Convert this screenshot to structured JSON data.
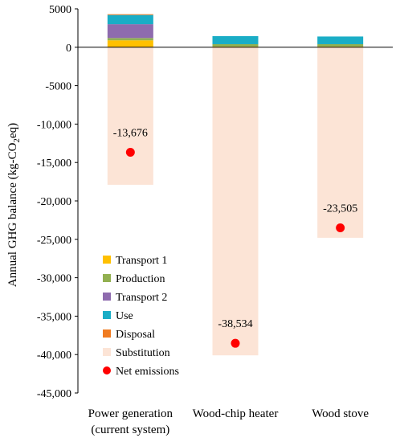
{
  "chart_data": {
    "type": "bar",
    "stacked": true,
    "categories": [
      [
        "Power generation",
        "(current system)"
      ],
      [
        "Wood-chip heater"
      ],
      [
        "Wood stove"
      ]
    ],
    "ylabel": "Annual GHG balance (kg-CO₂eq)",
    "ylim": [
      -45000,
      5000
    ],
    "yticks": [
      5000,
      0,
      -5000,
      -10000,
      -15000,
      -20000,
      -25000,
      -30000,
      -35000,
      -40000,
      -45000
    ],
    "ytick_labels": [
      "5000",
      "0",
      "-5000",
      "-10,000",
      "-15,000",
      "-20,000",
      "-25,000",
      "-30,000",
      "-35,000",
      "-40,000",
      "-45,000"
    ],
    "grid": false,
    "legend_position": "lower-left",
    "series": [
      {
        "name": "Transport 1",
        "color": "#FFC000",
        "values": [
          900,
          100,
          100
        ]
      },
      {
        "name": "Production",
        "color": "#92B050",
        "values": [
          300,
          300,
          300
        ]
      },
      {
        "name": "Transport 2",
        "color": "#8E6BAE",
        "values": [
          1800,
          0,
          0
        ]
      },
      {
        "name": "Use",
        "color": "#1AADC6",
        "values": [
          1200,
          1050,
          1000
        ]
      },
      {
        "name": "Disposal",
        "color": "#F07B20",
        "values": [
          100,
          0,
          0
        ]
      },
      {
        "name": "Substitution",
        "color": "#FCE4D6",
        "values": [
          -17900,
          -40100,
          -24800
        ]
      }
    ],
    "net_emissions": {
      "name": "Net emissions",
      "color": "#FF0000",
      "values": [
        -13676,
        -38534,
        -23505
      ],
      "labels": [
        "-13,676",
        "-38,534",
        "-23,505"
      ]
    }
  }
}
